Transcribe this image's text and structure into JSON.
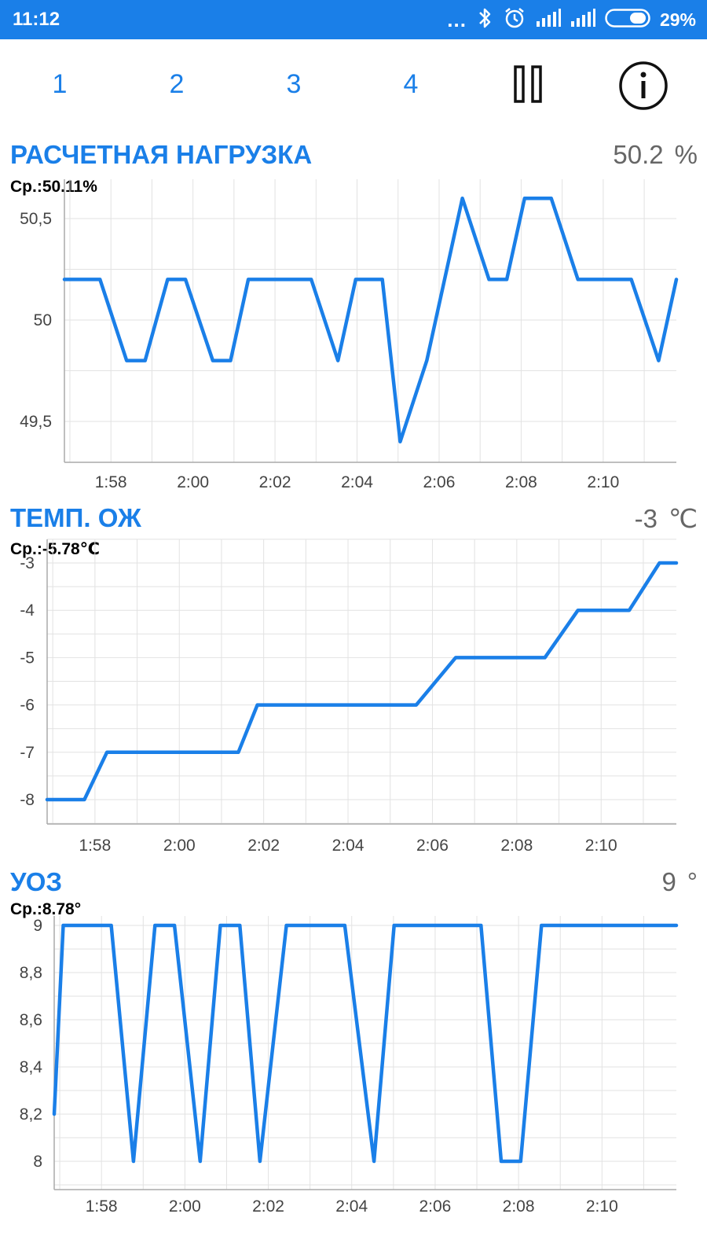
{
  "status_bar": {
    "time": "11:12",
    "more": "...",
    "battery_percent": "29%"
  },
  "toolbar": {
    "tabs": [
      "1",
      "2",
      "3",
      "4"
    ]
  },
  "colors": {
    "accent": "#1a7fe8",
    "line": "#1a7fe8",
    "grid": "#e2e2e2",
    "axis": "#aaaaaa"
  },
  "chart_data": [
    {
      "type": "line",
      "title": "РАСЧЕТНАЯ НАГРУЗКА",
      "current_value": "50.2",
      "unit": "%",
      "average_label": "Ср.:50.11%",
      "xlabel": "",
      "ylabel": "",
      "x_ticks": [
        "1:58",
        "2:00",
        "2:02",
        "2:04",
        "2:06",
        "2:08",
        "2:10"
      ],
      "y_ticks": [
        "50,5",
        "50",
        "49,5"
      ],
      "grid": true,
      "series": [
        {
          "x": [
            "1:56:52",
            "1:57:44",
            "1:58:23",
            "1:58:50",
            "1:59:23",
            "1:59:49",
            "2:00:29",
            "2:00:55",
            "2:01:21",
            "2:02:53",
            "2:03:32",
            "2:03:58",
            "2:04:37",
            "2:05:03",
            "2:05:42",
            "2:06:34",
            "2:07:13",
            "2:07:39",
            "2:08:05",
            "2:08:44",
            "2:09:23",
            "2:10:41",
            "2:11:21",
            "2:11:47"
          ],
          "y": [
            50.2,
            50.2,
            49.8,
            49.8,
            50.2,
            50.2,
            49.8,
            49.8,
            50.2,
            50.2,
            49.8,
            50.2,
            50.2,
            49.4,
            49.8,
            50.6,
            50.2,
            50.2,
            50.6,
            50.6,
            50.2,
            50.2,
            49.8,
            50.2
          ]
        }
      ]
    },
    {
      "type": "line",
      "title": "ТЕМП. ОЖ",
      "current_value": "-3",
      "unit": "℃",
      "average_label": "Ср.:-5.78℃",
      "xlabel": "",
      "ylabel": "",
      "x_ticks": [
        "1:58",
        "2:00",
        "2:02",
        "2:04",
        "2:06",
        "2:08",
        "2:10"
      ],
      "y_ticks": [
        "-3",
        "-4",
        "-5",
        "-6",
        "-7",
        "-8"
      ],
      "grid": true,
      "series": [
        {
          "x": [
            "1:56:52",
            "1:57:45",
            "1:58:17",
            "2:01:24",
            "2:01:51",
            "2:05:37",
            "2:06:33",
            "2:08:40",
            "2:09:27",
            "2:10:40",
            "2:11:23",
            "2:11:47"
          ],
          "y": [
            -8,
            -8,
            -7,
            -7,
            -6,
            -6,
            -5,
            -5,
            -4,
            -4,
            -3,
            -3
          ]
        }
      ]
    },
    {
      "type": "line",
      "title": "УОЗ",
      "current_value": "9",
      "unit": "°",
      "average_label": "Ср.:8.78°",
      "xlabel": "",
      "ylabel": "",
      "x_ticks": [
        "1:58",
        "2:00",
        "2:02",
        "2:04",
        "2:06",
        "2:08",
        "2:10"
      ],
      "y_ticks": [
        "9",
        "8,8",
        "8,6",
        "8,4",
        "8,2",
        "8"
      ],
      "grid": true,
      "series": [
        {
          "x": [
            "1:56:52",
            "1:57:05",
            "1:58:14",
            "1:58:46",
            "1:59:17",
            "1:59:45",
            "2:00:22",
            "2:00:51",
            "2:01:19",
            "2:01:48",
            "2:02:26",
            "2:03:50",
            "2:04:32",
            "2:05:01",
            "2:07:06",
            "2:07:35",
            "2:08:03",
            "2:08:33",
            "2:11:47"
          ],
          "y": [
            8.2,
            9,
            9,
            8,
            9,
            9,
            8,
            9,
            9,
            8,
            9,
            9,
            8,
            9,
            9,
            8,
            8,
            9,
            9
          ]
        }
      ]
    }
  ]
}
